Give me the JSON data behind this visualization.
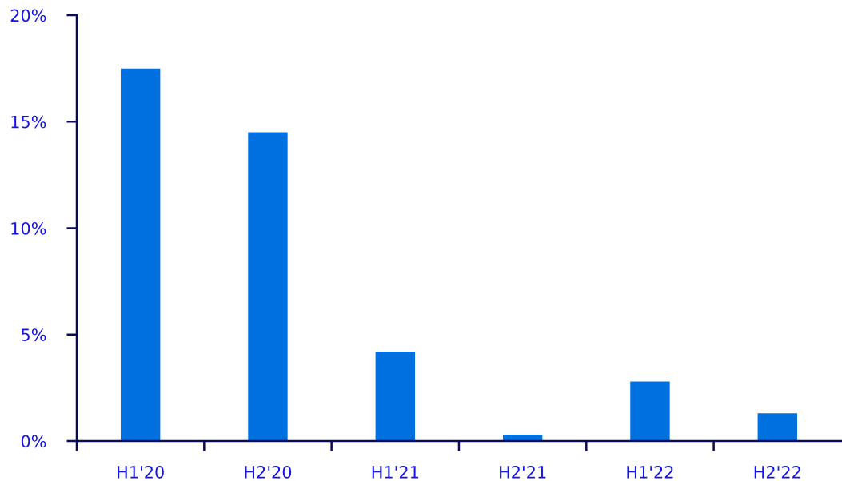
{
  "chart_data": {
    "type": "bar",
    "categories": [
      "H1'20",
      "H2'20",
      "H1'21",
      "H2'21",
      "H1'22",
      "H2'22"
    ],
    "values": [
      17.5,
      14.5,
      4.2,
      0.3,
      2.8,
      1.3
    ],
    "color": "#0070e0",
    "ylim": [
      0,
      20
    ],
    "yticks": [
      {
        "value": 0,
        "label": "0%"
      },
      {
        "value": 5,
        "label": "5%"
      },
      {
        "value": 10,
        "label": "10%"
      },
      {
        "value": 15,
        "label": "15%"
      },
      {
        "value": 20,
        "label": "20%"
      }
    ],
    "grid": false
  }
}
